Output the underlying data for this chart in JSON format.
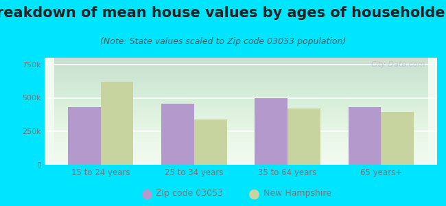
{
  "title": "Breakdown of mean house values by ages of householders",
  "subtitle": "(Note: State values scaled to Zip code 03053 population)",
  "categories": [
    "15 to 24 years",
    "25 to 34 years",
    "35 to 64 years",
    "65 years+"
  ],
  "zip_values": [
    430000,
    455000,
    500000,
    430000
  ],
  "state_values": [
    620000,
    340000,
    420000,
    395000
  ],
  "zip_color": "#b399cc",
  "state_color": "#c8d4a0",
  "background_outer": "#00e5ff",
  "background_inner_top": "#e8f5e8",
  "background_inner_bottom": "#f8fff8",
  "ylim": [
    0,
    800000
  ],
  "yticks": [
    0,
    250000,
    500000,
    750000
  ],
  "ytick_labels": [
    "0",
    "250k",
    "500k",
    "750k"
  ],
  "legend_zip_label": "Zip code 03053",
  "legend_state_label": "New Hampshire",
  "title_fontsize": 15,
  "subtitle_fontsize": 9,
  "bar_width": 0.35,
  "watermark": "City-Data.com",
  "tick_color": "#777777",
  "title_color": "#222222",
  "subtitle_color": "#555555"
}
